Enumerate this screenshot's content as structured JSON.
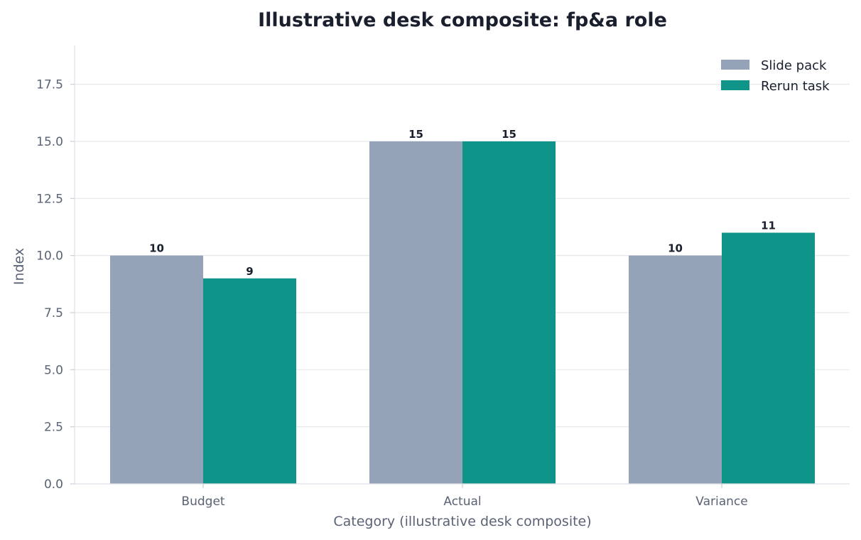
{
  "chart_data": {
    "type": "bar",
    "title": "Illustrative desk composite: fp&a role",
    "xlabel": "Category (illustrative desk composite)",
    "ylabel": "Index",
    "categories": [
      "Budget",
      "Actual",
      "Variance"
    ],
    "series": [
      {
        "name": "Slide pack",
        "values": [
          10,
          15,
          10
        ],
        "color": "#95a3b8"
      },
      {
        "name": "Rerun task",
        "values": [
          9,
          15,
          11
        ],
        "color": "#0e9488"
      }
    ],
    "ylim": [
      0,
      19.2
    ],
    "yticks": [
      "0.0",
      "2.5",
      "5.0",
      "7.5",
      "10.0",
      "12.5",
      "15.0",
      "17.5"
    ],
    "grid": "horizontal",
    "legend_position": "top-right"
  }
}
